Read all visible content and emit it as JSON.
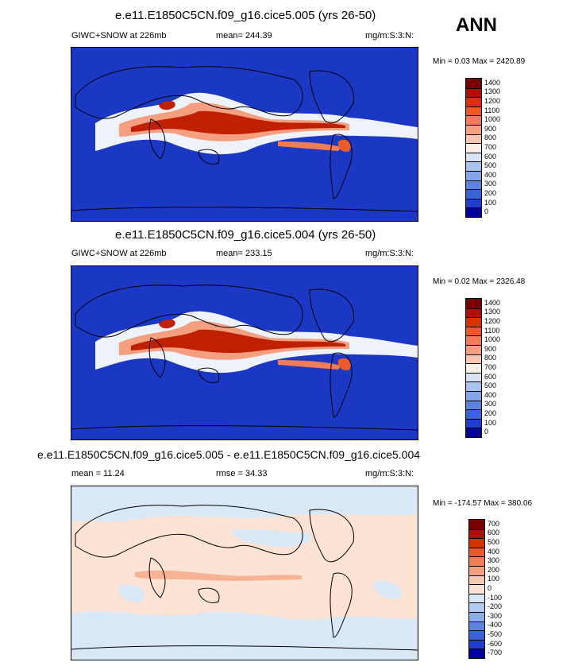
{
  "season": "ANN",
  "panels": [
    {
      "title": "e.e11.E1850C5CN.f09_g16.cice5.005 (yrs 26-50)",
      "left_label": "GIWC+SNOW at 226mb",
      "mid_label": "mean= 244.39",
      "units": "mg/m:S:3:N:",
      "minmax": "Min =   0.03 Max = 2420.89",
      "legend_ticks": [
        "1400",
        "1300",
        "1200",
        "1100",
        "1000",
        "900",
        "800",
        "700",
        "600",
        "500",
        "400",
        "300",
        "200",
        "100",
        "0"
      ],
      "legend_colors": [
        "#7a0000",
        "#b01000",
        "#d63300",
        "#eb5a2a",
        "#f27c55",
        "#f4a080",
        "#f8c7b0",
        "#fbeee5",
        "#d7e4f5",
        "#a8c3ee",
        "#84a6e8",
        "#5b84e0",
        "#3a63d8",
        "#1e3fcc",
        "#000099"
      ]
    },
    {
      "title": "e.e11.E1850C5CN.f09_g16.cice5.004 (yrs 26-50)",
      "left_label": "GIWC+SNOW at 226mb",
      "mid_label": "mean= 233.15",
      "units": "mg/m:S:3:N:",
      "minmax": "Min =   0.02 Max = 2326.48",
      "legend_ticks": [
        "1400",
        "1300",
        "1200",
        "1100",
        "1000",
        "900",
        "800",
        "700",
        "600",
        "500",
        "400",
        "300",
        "200",
        "100",
        "0"
      ],
      "legend_colors": [
        "#7a0000",
        "#b01000",
        "#d63300",
        "#eb5a2a",
        "#f27c55",
        "#f4a080",
        "#f8c7b0",
        "#fbeee5",
        "#d7e4f5",
        "#a8c3ee",
        "#84a6e8",
        "#5b84e0",
        "#3a63d8",
        "#1e3fcc",
        "#000099"
      ]
    },
    {
      "title": "e.e11.E1850C5CN.f09_g16.cice5.005 - e.e11.E1850C5CN.f09_g16.cice5.004",
      "left_label": "mean =  11.24",
      "mid_label": "rmse =  34.33",
      "units": "mg/m:S:3:N:",
      "minmax": "Min = -174.57 Max = 380.06",
      "legend_ticks": [
        "700",
        "600",
        "500",
        "400",
        "300",
        "200",
        "100",
        "0",
        "-100",
        "-200",
        "-300",
        "-400",
        "-500",
        "-600",
        "-700"
      ],
      "legend_colors": [
        "#7a0000",
        "#b01000",
        "#d63300",
        "#eb5a2a",
        "#f27c55",
        "#f4a080",
        "#f8c7b0",
        "#fde3d4",
        "#d9e8f7",
        "#b4ccef",
        "#8caee8",
        "#5b84e0",
        "#3a63d8",
        "#1e3fcc",
        "#000099"
      ]
    }
  ]
}
